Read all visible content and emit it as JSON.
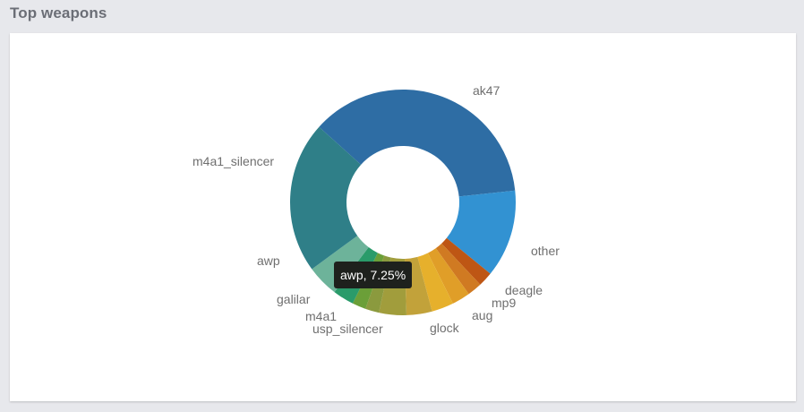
{
  "panel": {
    "title": "Top weapons"
  },
  "tooltip": {
    "text": "awp, 7.25%"
  },
  "chart_data": {
    "type": "pie",
    "donut": true,
    "title": "Top weapons",
    "legend": "none",
    "labels": [
      "ak47",
      "other",
      "deagle",
      "mp9",
      "aug",
      "glock",
      "usp_silencer",
      "m4a1",
      "galilar",
      "awp",
      "m4a1_silencer"
    ],
    "values": [
      35.0,
      12.0,
      2.0,
      2.0,
      2.5,
      3.0,
      3.5,
      3.75,
      3.75,
      7.25,
      20.75
    ],
    "colors": [
      "#2e6da4",
      "#3292d2",
      "#be5614",
      "#d07a22",
      "#e09e28",
      "#e6b02c",
      "#c2a23a",
      "#a19d3c",
      "#8b9a3e",
      "#6b9f38",
      "#2a9b6a",
      "#6db39a",
      "#2f7f88"
    ]
  }
}
